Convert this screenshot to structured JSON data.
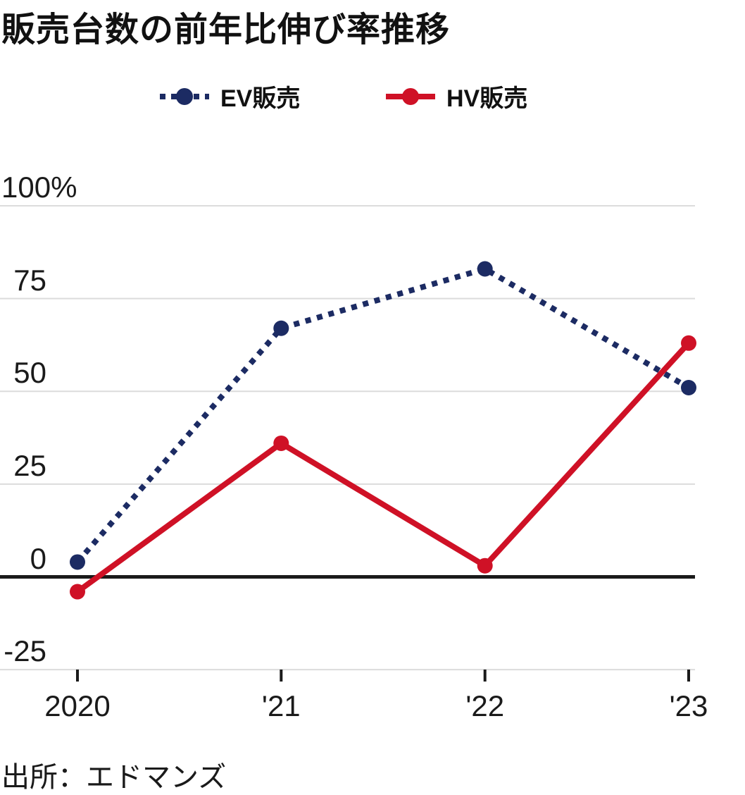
{
  "title": "販売台数の前年比伸び率推移",
  "source": "出所：エドマンズ",
  "legend": [
    {
      "label": "EV販売",
      "color": "#1c2b63",
      "style": "dotted"
    },
    {
      "label": "HV販売",
      "color": "#cf1126",
      "style": "solid"
    }
  ],
  "colors": {
    "ev": "#1c2b63",
    "hv": "#cf1126",
    "grid": "#dcdcdc",
    "zero_line": "#1a1a1a",
    "text": "#1a1a1a"
  },
  "chart_data": {
    "type": "line",
    "title": "販売台数の前年比伸び率推移",
    "categories": [
      "2020",
      "'21",
      "'22",
      "'23"
    ],
    "series": [
      {
        "name": "EV販売",
        "color": "#1c2b63",
        "line_style": "dotted",
        "values": [
          4,
          67,
          83,
          51
        ]
      },
      {
        "name": "HV販売",
        "color": "#cf1126",
        "line_style": "solid",
        "values": [
          -4,
          36,
          3,
          63
        ]
      }
    ],
    "unit": "%",
    "ylim": [
      -25,
      100
    ],
    "y_ticks": [
      100,
      75,
      50,
      25,
      0,
      -25
    ],
    "y_tick_labels": [
      "100%",
      "75",
      "50",
      "25",
      "0",
      "-25"
    ],
    "grid": "horizontal",
    "zero_line": true,
    "legend_position": "top",
    "source": "出所：エドマンズ"
  }
}
